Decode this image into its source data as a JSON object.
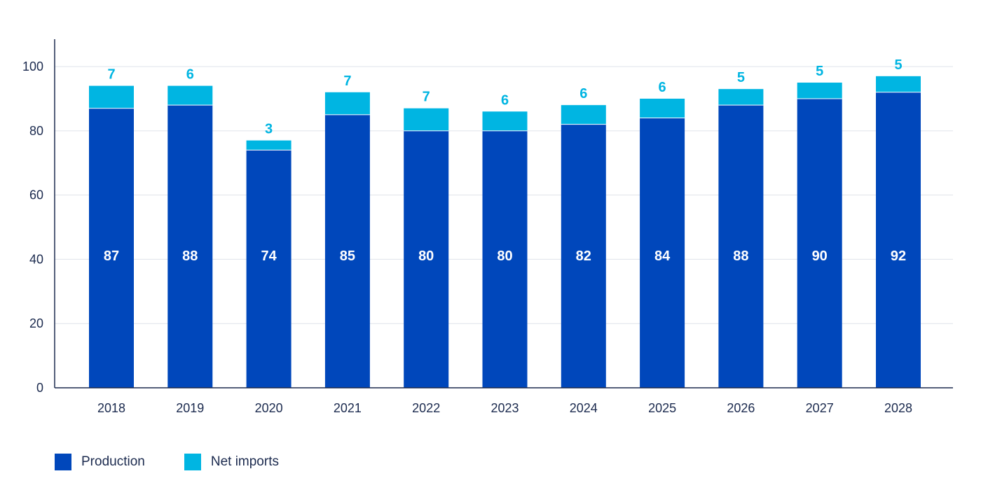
{
  "chart_data": {
    "type": "bar",
    "stacked": true,
    "categories": [
      "2018",
      "2019",
      "2020",
      "2021",
      "2022",
      "2023",
      "2024",
      "2025",
      "2026",
      "2027",
      "2028"
    ],
    "series": [
      {
        "name": "Production",
        "color": "#0047bb",
        "values": [
          87,
          88,
          74,
          85,
          80,
          80,
          82,
          84,
          88,
          90,
          92
        ]
      },
      {
        "name": "Net imports",
        "color": "#00b5e2",
        "values": [
          7,
          6,
          3,
          7,
          7,
          6,
          6,
          6,
          5,
          5,
          5
        ]
      }
    ],
    "yticks": [
      "0",
      "20",
      "40",
      "60",
      "80",
      "100"
    ],
    "ylim": [
      0,
      112
    ],
    "grid": true,
    "legend_position": "bottom-left",
    "title": "",
    "xlabel": "",
    "ylabel": ""
  }
}
